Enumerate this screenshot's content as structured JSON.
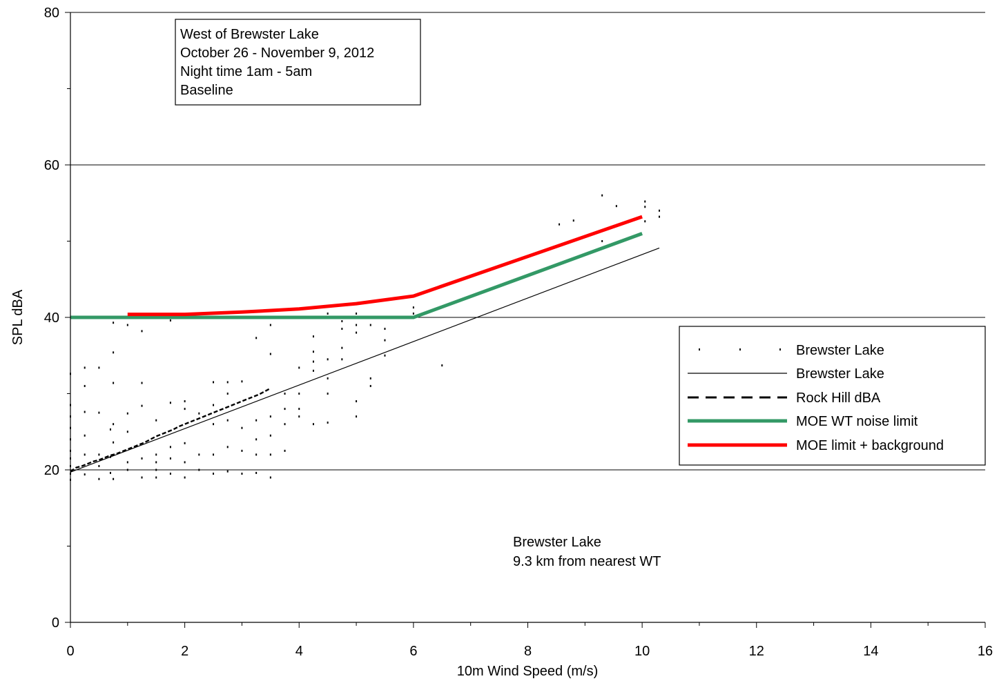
{
  "chart_data": {
    "type": "scatter",
    "title": "",
    "xlabel": "10m Wind Speed (m/s)",
    "ylabel": "SPL  dBA",
    "xlim": [
      0,
      16
    ],
    "ylim": [
      0,
      80
    ],
    "x_ticks": [
      0,
      2,
      4,
      6,
      8,
      10,
      12,
      14,
      16
    ],
    "y_ticks": [
      0,
      20,
      40,
      60,
      80
    ],
    "grid": "horizontal major gridlines at 20, 40, 60, 80",
    "legend_position": "right, between 20 and 40 dBA",
    "info_box": {
      "lines": [
        "West of Brewster Lake",
        "October 26 - November 9, 2012",
        "Night time 1am - 5am",
        "Baseline"
      ]
    },
    "annotation": {
      "lines": [
        "Brewster Lake",
        "9.3 km from nearest WT"
      ]
    },
    "colors": {
      "scatter": "#000000",
      "trend": "#000000",
      "rock_hill": "#000000",
      "moe_limit": "#339966",
      "moe_background": "#ff0000"
    },
    "series": [
      {
        "name": "Brewster Lake",
        "kind": "scatter",
        "points": [
          [
            0,
            32.6
          ],
          [
            0,
            28.5
          ],
          [
            0,
            27.0
          ],
          [
            0,
            25.5
          ],
          [
            0,
            24.0
          ],
          [
            0,
            22.5
          ],
          [
            0,
            21.5
          ],
          [
            0,
            20.5
          ],
          [
            0,
            19.5
          ],
          [
            0,
            18.7
          ],
          [
            0.25,
            33.4
          ],
          [
            0.25,
            31.0
          ],
          [
            0.25,
            27.6
          ],
          [
            0.25,
            24.5
          ],
          [
            0.25,
            22.0
          ],
          [
            0.25,
            19.4
          ],
          [
            0.5,
            33.4
          ],
          [
            0.5,
            27.5
          ],
          [
            0.5,
            22.0
          ],
          [
            0.5,
            20.5
          ],
          [
            0.5,
            18.8
          ],
          [
            0.7,
            25.3
          ],
          [
            0.7,
            21.7
          ],
          [
            0.7,
            19.6
          ],
          [
            0.75,
            39.3
          ],
          [
            0.75,
            35.4
          ],
          [
            0.75,
            31.4
          ],
          [
            0.75,
            26.0
          ],
          [
            0.75,
            23.6
          ],
          [
            0.75,
            18.8
          ],
          [
            1.0,
            39.0
          ],
          [
            1.0,
            27.4
          ],
          [
            1.0,
            25.0
          ],
          [
            1.0,
            21.0
          ],
          [
            1.0,
            20.0
          ],
          [
            1.25,
            38.2
          ],
          [
            1.25,
            31.4
          ],
          [
            1.25,
            28.4
          ],
          [
            1.25,
            21.5
          ],
          [
            1.25,
            19.0
          ],
          [
            1.5,
            26.5
          ],
          [
            1.5,
            22.0
          ],
          [
            1.5,
            21.0
          ],
          [
            1.5,
            20.0
          ],
          [
            1.5,
            19.0
          ],
          [
            1.75,
            39.6
          ],
          [
            1.75,
            28.8
          ],
          [
            1.75,
            23.0
          ],
          [
            1.75,
            21.5
          ],
          [
            1.75,
            19.5
          ],
          [
            2.0,
            29.0
          ],
          [
            2.0,
            28.0
          ],
          [
            2.0,
            23.5
          ],
          [
            2.0,
            21.0
          ],
          [
            2.0,
            19.0
          ],
          [
            2.25,
            27.4
          ],
          [
            2.25,
            22.0
          ],
          [
            2.25,
            20.0
          ],
          [
            2.5,
            31.5
          ],
          [
            2.5,
            28.5
          ],
          [
            2.5,
            26.0
          ],
          [
            2.5,
            22.0
          ],
          [
            2.5,
            19.5
          ],
          [
            2.75,
            31.5
          ],
          [
            2.75,
            30.0
          ],
          [
            2.75,
            26.5
          ],
          [
            2.75,
            23.0
          ],
          [
            2.75,
            19.8
          ],
          [
            3.0,
            31.6
          ],
          [
            3.0,
            25.5
          ],
          [
            3.0,
            22.5
          ],
          [
            3.0,
            19.5
          ],
          [
            3.25,
            37.3
          ],
          [
            3.25,
            26.5
          ],
          [
            3.25,
            24.0
          ],
          [
            3.25,
            22.0
          ],
          [
            3.25,
            19.6
          ],
          [
            3.5,
            39.0
          ],
          [
            3.5,
            35.2
          ],
          [
            3.5,
            27.0
          ],
          [
            3.5,
            24.5
          ],
          [
            3.5,
            22.0
          ],
          [
            3.5,
            19.0
          ],
          [
            3.75,
            30.0
          ],
          [
            3.75,
            28.0
          ],
          [
            3.75,
            26.0
          ],
          [
            3.75,
            22.5
          ],
          [
            4.0,
            33.4
          ],
          [
            4.0,
            30.0
          ],
          [
            4.0,
            28.0
          ],
          [
            4.0,
            27.0
          ],
          [
            4.25,
            37.5
          ],
          [
            4.25,
            35.5
          ],
          [
            4.25,
            34.2
          ],
          [
            4.25,
            33.0
          ],
          [
            4.25,
            26.0
          ],
          [
            4.5,
            40.5
          ],
          [
            4.5,
            34.5
          ],
          [
            4.5,
            32.0
          ],
          [
            4.5,
            30.0
          ],
          [
            4.5,
            26.2
          ],
          [
            4.75,
            39.5
          ],
          [
            4.75,
            38.5
          ],
          [
            4.75,
            36.0
          ],
          [
            4.75,
            34.5
          ],
          [
            5.0,
            40.5
          ],
          [
            5.0,
            39.0
          ],
          [
            5.0,
            38.0
          ],
          [
            5.0,
            29.0
          ],
          [
            5.0,
            27.0
          ],
          [
            5.25,
            40.0
          ],
          [
            5.25,
            39.0
          ],
          [
            5.25,
            32.0
          ],
          [
            5.25,
            31.0
          ],
          [
            5.5,
            40.0
          ],
          [
            5.5,
            38.5
          ],
          [
            5.5,
            37.0
          ],
          [
            5.5,
            35.0
          ],
          [
            6.0,
            41.3
          ],
          [
            6.0,
            40.5
          ],
          [
            6.5,
            33.7
          ],
          [
            8.55,
            52.2
          ],
          [
            8.8,
            52.7
          ],
          [
            9.3,
            56.0
          ],
          [
            9.3,
            50.0
          ],
          [
            9.55,
            54.6
          ],
          [
            10.05,
            55.2
          ],
          [
            10.05,
            54.5
          ],
          [
            10.05,
            52.6
          ],
          [
            10.3,
            54.0
          ],
          [
            10.3,
            53.2
          ]
        ]
      },
      {
        "name": "Brewster Lake",
        "kind": "line",
        "x": [
          0,
          10.3
        ],
        "y": [
          19.7,
          49.1
        ]
      },
      {
        "name": "Rock Hill dBA",
        "kind": "line",
        "dash": true,
        "x": [
          0,
          0.1,
          0.2,
          0.3,
          0.4,
          0.5,
          0.6,
          0.7,
          0.8,
          0.9,
          1.0,
          1.1,
          1.2,
          1.3,
          1.4,
          1.5,
          1.6,
          1.7,
          1.8,
          1.9,
          2.0,
          2.1,
          2.2,
          2.3,
          2.4,
          2.5,
          2.6,
          2.7,
          2.8,
          2.9,
          3.0,
          3.1,
          3.2,
          3.3,
          3.4,
          3.5
        ],
        "y": [
          19.8,
          20.3,
          20.5,
          20.8,
          21.1,
          21.3,
          21.6,
          21.9,
          22.1,
          22.4,
          22.7,
          23.0,
          23.3,
          23.6,
          24.0,
          24.4,
          24.7,
          25.0,
          25.3,
          25.7,
          26.0,
          26.3,
          26.6,
          26.9,
          27.2,
          27.5,
          27.8,
          28.1,
          28.4,
          28.7,
          29.0,
          29.3,
          29.6,
          29.9,
          30.3,
          30.7
        ]
      },
      {
        "name": "MOE WT noise limit",
        "kind": "line",
        "x": [
          0,
          6,
          10
        ],
        "y": [
          40,
          40,
          51
        ]
      },
      {
        "name": "MOE limit + background",
        "kind": "line",
        "x": [
          1,
          2,
          3,
          4,
          5,
          6,
          10
        ],
        "y": [
          40.4,
          40.4,
          40.7,
          41.1,
          41.8,
          42.8,
          53.2
        ]
      }
    ]
  }
}
